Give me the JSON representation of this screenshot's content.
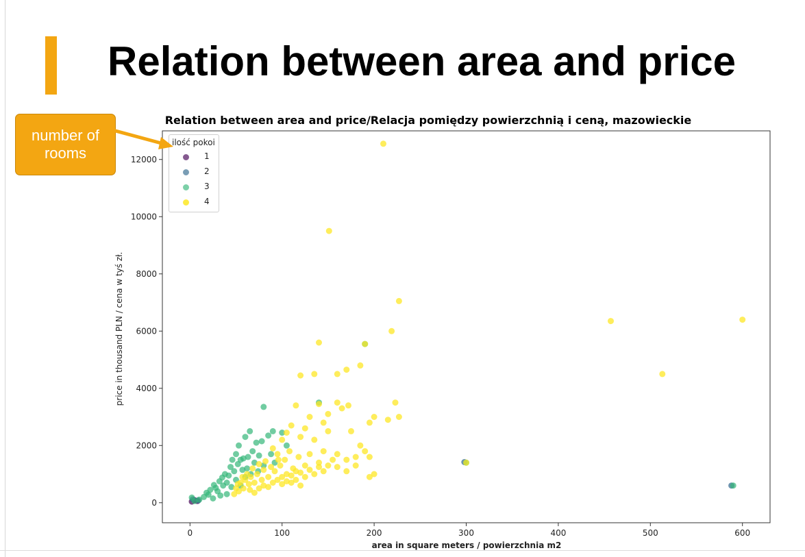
{
  "slide": {
    "title": "Relation between area and price",
    "accent_color": "#f3a612"
  },
  "callout": {
    "text": "number of rooms",
    "color": "#f3a612"
  },
  "chart_data": {
    "type": "scatter",
    "title": "Relation between area and price/Relacja pomiędzy powierzchnią i ceną, mazowieckie",
    "xlabel": "area in square meters / powierzchnia m2",
    "ylabel": "price in thousand PLN / cena w tyś zł.",
    "xlim": [
      -30,
      630
    ],
    "ylim": [
      -700,
      13000
    ],
    "xticks": [
      0,
      100,
      200,
      300,
      400,
      500,
      600
    ],
    "yticks": [
      0,
      2000,
      4000,
      6000,
      8000,
      10000,
      12000
    ],
    "grid": false,
    "legend": {
      "title": "ilość pokoi",
      "placement": "top-left",
      "entries": [
        "1",
        "2",
        "3",
        "4"
      ]
    },
    "series": [
      {
        "name": "1",
        "color": "#440154",
        "points": [
          [
            2,
            40
          ],
          [
            5,
            90
          ],
          [
            8,
            60
          ]
        ]
      },
      {
        "name": "2",
        "color": "#31688e",
        "points": [
          [
            3,
            120
          ],
          [
            9,
            80
          ],
          [
            298,
            1420
          ],
          [
            588,
            600
          ]
        ]
      },
      {
        "name": "3",
        "color": "#35b779",
        "points": [
          [
            2,
            180
          ],
          [
            5,
            60
          ],
          [
            10,
            110
          ],
          [
            15,
            200
          ],
          [
            18,
            350
          ],
          [
            20,
            280
          ],
          [
            22,
            450
          ],
          [
            25,
            150
          ],
          [
            26,
            620
          ],
          [
            28,
            520
          ],
          [
            30,
            400
          ],
          [
            32,
            750
          ],
          [
            33,
            250
          ],
          [
            35,
            880
          ],
          [
            36,
            600
          ],
          [
            38,
            1000
          ],
          [
            40,
            700
          ],
          [
            40,
            300
          ],
          [
            42,
            950
          ],
          [
            44,
            1250
          ],
          [
            45,
            550
          ],
          [
            46,
            1500
          ],
          [
            48,
            1100
          ],
          [
            50,
            800
          ],
          [
            50,
            1700
          ],
          [
            52,
            1350
          ],
          [
            53,
            2000
          ],
          [
            55,
            600
          ],
          [
            55,
            1500
          ],
          [
            57,
            1150
          ],
          [
            58,
            1550
          ],
          [
            60,
            900
          ],
          [
            60,
            2300
          ],
          [
            62,
            1200
          ],
          [
            63,
            1600
          ],
          [
            65,
            2500
          ],
          [
            66,
            1000
          ],
          [
            68,
            1800
          ],
          [
            70,
            1400
          ],
          [
            72,
            2100
          ],
          [
            74,
            1100
          ],
          [
            75,
            1650
          ],
          [
            78,
            2150
          ],
          [
            80,
            3350
          ],
          [
            80,
            1300
          ],
          [
            85,
            2350
          ],
          [
            88,
            1700
          ],
          [
            90,
            2500
          ],
          [
            92,
            1400
          ],
          [
            100,
            2450
          ],
          [
            105,
            2000
          ],
          [
            140,
            3500
          ],
          [
            190,
            5550
          ],
          [
            300,
            1400
          ],
          [
            590,
            600
          ]
        ]
      },
      {
        "name": "4",
        "color": "#fde725",
        "points": [
          [
            210,
            12550
          ],
          [
            151,
            9500
          ],
          [
            227,
            7050
          ],
          [
            219,
            6000
          ],
          [
            457,
            6350
          ],
          [
            600,
            6400
          ],
          [
            140,
            5600
          ],
          [
            513,
            4500
          ],
          [
            190,
            5550
          ],
          [
            120,
            4450
          ],
          [
            135,
            4500
          ],
          [
            160,
            4500
          ],
          [
            170,
            4650
          ],
          [
            185,
            4800
          ],
          [
            223,
            3500
          ],
          [
            227,
            3000
          ],
          [
            200,
            3000
          ],
          [
            195,
            2800
          ],
          [
            215,
            2900
          ],
          [
            140,
            3450
          ],
          [
            160,
            3500
          ],
          [
            172,
            3400
          ],
          [
            165,
            3300
          ],
          [
            150,
            3100
          ],
          [
            145,
            2800
          ],
          [
            130,
            3000
          ],
          [
            125,
            2600
          ],
          [
            115,
            3400
          ],
          [
            110,
            2700
          ],
          [
            105,
            2450
          ],
          [
            100,
            2200
          ],
          [
            120,
            2300
          ],
          [
            135,
            2200
          ],
          [
            150,
            2500
          ],
          [
            175,
            2500
          ],
          [
            185,
            2000
          ],
          [
            190,
            1800
          ],
          [
            195,
            1600
          ],
          [
            200,
            1000
          ],
          [
            195,
            900
          ],
          [
            180,
            1300
          ],
          [
            170,
            1100
          ],
          [
            160,
            1700
          ],
          [
            155,
            1500
          ],
          [
            145,
            1800
          ],
          [
            140,
            1400
          ],
          [
            130,
            1700
          ],
          [
            125,
            1300
          ],
          [
            118,
            1600
          ],
          [
            112,
            1200
          ],
          [
            108,
            1800
          ],
          [
            103,
            1500
          ],
          [
            98,
            1300
          ],
          [
            95,
            1700
          ],
          [
            92,
            1100
          ],
          [
            90,
            1900
          ],
          [
            88,
            1250
          ],
          [
            85,
            900
          ],
          [
            82,
            1450
          ],
          [
            80,
            1150
          ],
          [
            78,
            800
          ],
          [
            75,
            1350
          ],
          [
            73,
            1000
          ],
          [
            70,
            700
          ],
          [
            68,
            1200
          ],
          [
            66,
            900
          ],
          [
            64,
            650
          ],
          [
            62,
            1000
          ],
          [
            60,
            800
          ],
          [
            58,
            500
          ],
          [
            57,
            900
          ],
          [
            55,
            700
          ],
          [
            53,
            400
          ],
          [
            52,
            650
          ],
          [
            50,
            500
          ],
          [
            48,
            300
          ],
          [
            65,
            450
          ],
          [
            70,
            350
          ],
          [
            75,
            500
          ],
          [
            80,
            600
          ],
          [
            85,
            550
          ],
          [
            90,
            700
          ],
          [
            95,
            800
          ],
          [
            100,
            900
          ],
          [
            105,
            1000
          ],
          [
            110,
            950
          ],
          [
            115,
            1100
          ],
          [
            120,
            1050
          ],
          [
            125,
            900
          ],
          [
            130,
            1150
          ],
          [
            135,
            1000
          ],
          [
            140,
            1250
          ],
          [
            145,
            1100
          ],
          [
            150,
            1300
          ],
          [
            160,
            1250
          ],
          [
            170,
            1500
          ],
          [
            180,
            1600
          ],
          [
            100,
            650
          ],
          [
            105,
            750
          ],
          [
            110,
            700
          ],
          [
            115,
            800
          ],
          [
            120,
            600
          ],
          [
            300,
            1400
          ],
          [
            96,
            1500
          ]
        ]
      }
    ]
  }
}
